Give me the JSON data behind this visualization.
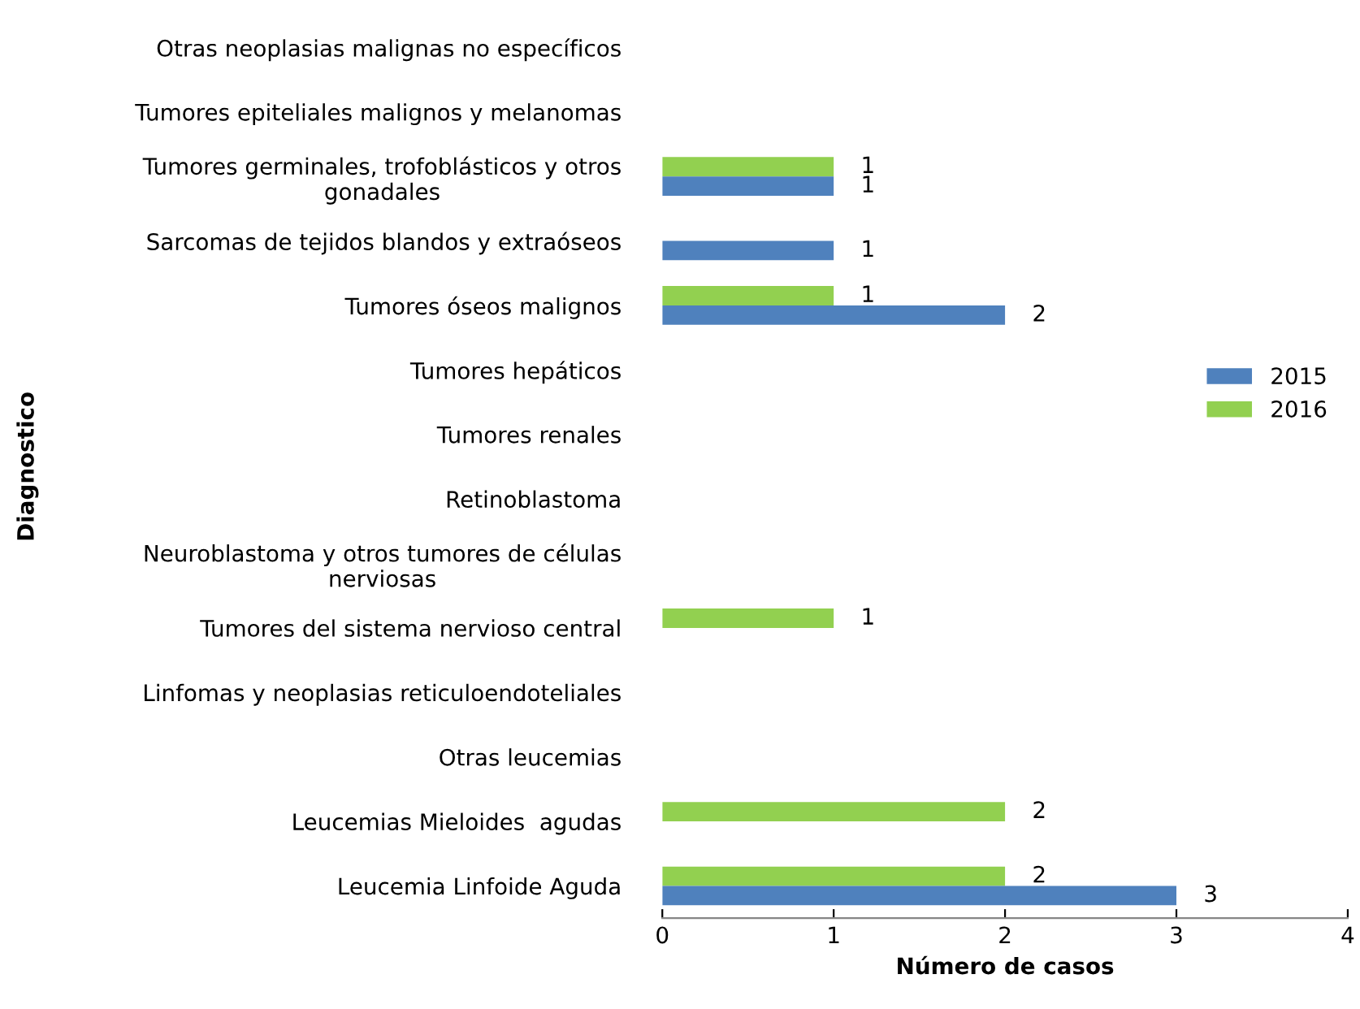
{
  "chart_data": {
    "type": "bar",
    "orientation": "horizontal",
    "xlabel": "Número de casos",
    "ylabel": "Diagnostico",
    "categories": [
      "Otras neoplasias malignas no específicos",
      "Tumores epiteliales malignos y melanomas",
      "Tumores germinales, trofoblásticos y otros\ngonadales",
      "Sarcomas de tejidos blandos y extraóseos",
      "Tumores óseos malignos",
      "Tumores hepáticos",
      "Tumores renales",
      "Retinoblastoma",
      "Neuroblastoma y otros tumores de células\nnerviosas",
      "Tumores del sistema nervioso central",
      "Linfomas y neoplasias reticuloendoteliales",
      "Otras leucemias",
      "Leucemias Mieloides  agudas",
      "Leucemia Linfoide Aguda"
    ],
    "series": [
      {
        "name": "2016",
        "color": "#92d050",
        "values": [
          null,
          null,
          1,
          null,
          1,
          null,
          null,
          null,
          null,
          1,
          null,
          null,
          2,
          2
        ]
      },
      {
        "name": "2015",
        "color": "#4f81bd",
        "values": [
          null,
          null,
          1,
          1,
          2,
          null,
          null,
          null,
          null,
          null,
          null,
          null,
          null,
          3
        ]
      }
    ],
    "xlim": [
      0,
      4
    ],
    "xticks": [
      0,
      1,
      2,
      3,
      4
    ],
    "data_labels": true,
    "grid": false,
    "legend": "right"
  }
}
